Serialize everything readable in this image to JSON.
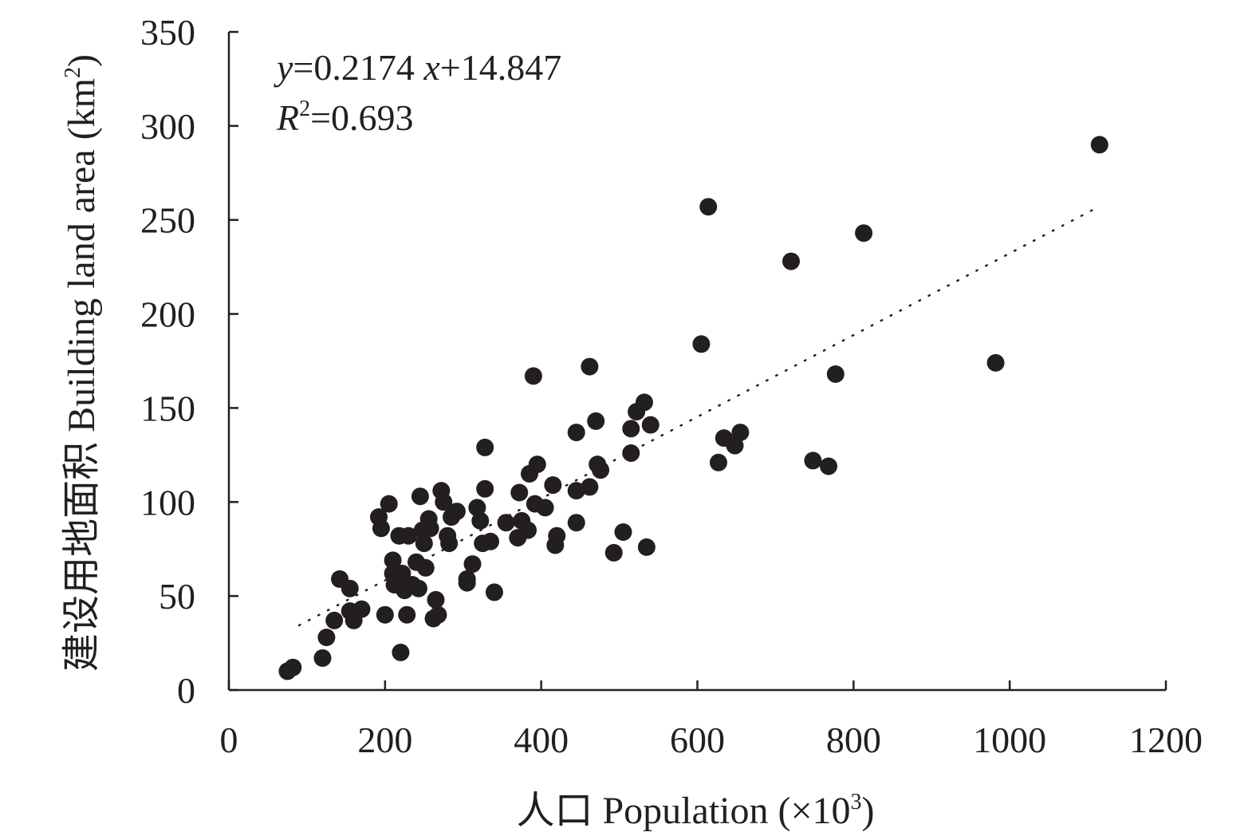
{
  "chart_data": {
    "type": "scatter",
    "xlabel": "人口 Population (×10",
    "xlabel_sup": "3",
    "xlabel_end": ")",
    "ylabel": "建设用地面积 Building land area (km",
    "ylabel_sup": "2",
    "ylabel_end": ")",
    "xlim": [
      0,
      1200
    ],
    "ylim": [
      0,
      350
    ],
    "xticks": [
      0,
      200,
      400,
      600,
      800,
      1000,
      1200
    ],
    "yticks": [
      0,
      50,
      100,
      150,
      200,
      250,
      300,
      350
    ],
    "grid": false,
    "annotation": {
      "eq_y": "y",
      "eq_rest1": "=0.2174 ",
      "eq_x": "x",
      "eq_rest2": "+14.847",
      "r_letter": "R",
      "r_sup": "2",
      "r_rest": "=0.693"
    },
    "trendline": {
      "slope": 0.2174,
      "intercept": 14.847,
      "x_range": [
        90,
        1115
      ]
    },
    "points": [
      [
        75,
        10
      ],
      [
        82,
        12
      ],
      [
        120,
        17
      ],
      [
        125,
        28
      ],
      [
        135,
        37
      ],
      [
        142,
        59
      ],
      [
        155,
        54
      ],
      [
        155,
        42
      ],
      [
        160,
        37
      ],
      [
        170,
        43
      ],
      [
        192,
        92
      ],
      [
        195,
        86
      ],
      [
        200,
        40
      ],
      [
        205,
        99
      ],
      [
        210,
        69
      ],
      [
        210,
        62
      ],
      [
        212,
        56
      ],
      [
        218,
        82
      ],
      [
        220,
        20
      ],
      [
        222,
        62
      ],
      [
        225,
        53
      ],
      [
        228,
        40
      ],
      [
        230,
        82
      ],
      [
        235,
        56
      ],
      [
        240,
        68
      ],
      [
        243,
        54
      ],
      [
        245,
        103
      ],
      [
        248,
        85
      ],
      [
        250,
        78
      ],
      [
        252,
        65
      ],
      [
        256,
        91
      ],
      [
        258,
        86
      ],
      [
        262,
        38
      ],
      [
        265,
        48
      ],
      [
        268,
        40
      ],
      [
        272,
        106
      ],
      [
        275,
        100
      ],
      [
        280,
        82
      ],
      [
        282,
        78
      ],
      [
        285,
        92
      ],
      [
        292,
        95
      ],
      [
        305,
        57
      ],
      [
        305,
        59
      ],
      [
        312,
        67
      ],
      [
        318,
        97
      ],
      [
        322,
        90
      ],
      [
        325,
        78
      ],
      [
        328,
        129
      ],
      [
        328,
        107
      ],
      [
        335,
        79
      ],
      [
        340,
        52
      ],
      [
        355,
        89
      ],
      [
        370,
        81
      ],
      [
        372,
        105
      ],
      [
        375,
        90
      ],
      [
        383,
        85
      ],
      [
        385,
        115
      ],
      [
        390,
        167
      ],
      [
        392,
        99
      ],
      [
        395,
        120
      ],
      [
        405,
        97
      ],
      [
        415,
        109
      ],
      [
        420,
        82
      ],
      [
        418,
        77
      ],
      [
        445,
        137
      ],
      [
        445,
        89
      ],
      [
        445,
        106
      ],
      [
        462,
        108
      ],
      [
        462,
        172
      ],
      [
        470,
        143
      ],
      [
        472,
        120
      ],
      [
        476,
        117
      ],
      [
        493,
        73
      ],
      [
        505,
        84
      ],
      [
        515,
        126
      ],
      [
        515,
        139
      ],
      [
        522,
        148
      ],
      [
        532,
        153
      ],
      [
        535,
        76
      ],
      [
        540,
        141
      ],
      [
        605,
        184
      ],
      [
        614,
        257
      ],
      [
        627,
        121
      ],
      [
        634,
        134
      ],
      [
        648,
        130
      ],
      [
        655,
        137
      ],
      [
        720,
        228
      ],
      [
        748,
        122
      ],
      [
        768,
        119
      ],
      [
        777,
        168
      ],
      [
        813,
        243
      ],
      [
        982,
        174
      ],
      [
        1115,
        290
      ]
    ]
  }
}
